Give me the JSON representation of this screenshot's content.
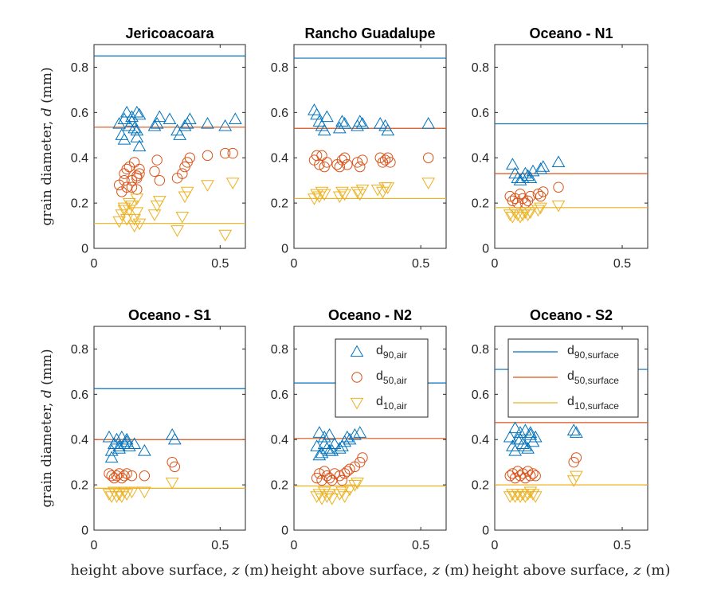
{
  "chart_data": [
    {
      "type": "scatter",
      "title": "Jericoacoara",
      "xlabel": "",
      "ylabel": "grain diameter, d (mm)",
      "xlim": [
        0,
        0.6
      ],
      "ylim": [
        0,
        0.9
      ],
      "xticks": [
        "0",
        "0.5"
      ],
      "yticks": [
        "0",
        "0.2",
        "0.4",
        "0.6",
        "0.8"
      ],
      "lines": {
        "d90_surface": 0.85,
        "d50_surface": 0.535,
        "d10_surface": 0.11
      },
      "series": [
        {
          "name": "d90,air",
          "x": [
            0.1,
            0.11,
            0.12,
            0.13,
            0.14,
            0.15,
            0.16,
            0.17,
            0.17,
            0.18,
            0.12,
            0.15,
            0.17,
            0.18,
            0.24,
            0.25,
            0.26,
            0.3,
            0.33,
            0.34,
            0.36,
            0.37,
            0.38,
            0.45,
            0.52,
            0.56
          ],
          "y": [
            0.55,
            0.5,
            0.57,
            0.6,
            0.54,
            0.58,
            0.53,
            0.6,
            0.49,
            0.45,
            0.48,
            0.56,
            0.52,
            0.59,
            0.54,
            0.55,
            0.58,
            0.57,
            0.52,
            0.5,
            0.54,
            0.55,
            0.57,
            0.55,
            0.54,
            0.57
          ]
        },
        {
          "name": "d50,air",
          "x": [
            0.1,
            0.11,
            0.12,
            0.13,
            0.13,
            0.14,
            0.15,
            0.16,
            0.17,
            0.17,
            0.18,
            0.12,
            0.15,
            0.17,
            0.18,
            0.24,
            0.25,
            0.26,
            0.33,
            0.35,
            0.36,
            0.37,
            0.38,
            0.45,
            0.52,
            0.55
          ],
          "y": [
            0.28,
            0.25,
            0.33,
            0.35,
            0.27,
            0.36,
            0.3,
            0.38,
            0.32,
            0.26,
            0.35,
            0.3,
            0.27,
            0.31,
            0.33,
            0.34,
            0.39,
            0.3,
            0.31,
            0.33,
            0.36,
            0.38,
            0.4,
            0.41,
            0.42,
            0.42
          ]
        },
        {
          "name": "d10,air",
          "x": [
            0.1,
            0.11,
            0.12,
            0.13,
            0.14,
            0.15,
            0.16,
            0.17,
            0.17,
            0.18,
            0.12,
            0.14,
            0.16,
            0.24,
            0.25,
            0.26,
            0.33,
            0.35,
            0.36,
            0.37,
            0.45,
            0.52,
            0.55
          ],
          "y": [
            0.12,
            0.15,
            0.18,
            0.13,
            0.17,
            0.19,
            0.1,
            0.16,
            0.22,
            0.11,
            0.17,
            0.2,
            0.13,
            0.15,
            0.19,
            0.21,
            0.08,
            0.14,
            0.23,
            0.25,
            0.28,
            0.06,
            0.29
          ]
        }
      ]
    },
    {
      "type": "scatter",
      "title": "Rancho Guadalupe",
      "xlabel": "",
      "ylabel": "",
      "xlim": [
        0,
        0.6
      ],
      "ylim": [
        0,
        0.9
      ],
      "xticks": [
        "0",
        "0.5"
      ],
      "yticks": [
        "0",
        "0.2",
        "0.4",
        "0.6",
        "0.8"
      ],
      "lines": {
        "d90_surface": 0.84,
        "d50_surface": 0.53,
        "d10_surface": 0.22
      },
      "series": [
        {
          "name": "d90,air",
          "x": [
            0.08,
            0.09,
            0.1,
            0.11,
            0.12,
            0.13,
            0.18,
            0.19,
            0.2,
            0.25,
            0.26,
            0.27,
            0.34,
            0.36,
            0.37,
            0.53
          ],
          "y": [
            0.61,
            0.59,
            0.56,
            0.54,
            0.52,
            0.58,
            0.53,
            0.56,
            0.55,
            0.54,
            0.56,
            0.55,
            0.55,
            0.54,
            0.52,
            0.55
          ]
        },
        {
          "name": "d50,air",
          "x": [
            0.08,
            0.09,
            0.1,
            0.11,
            0.12,
            0.13,
            0.17,
            0.18,
            0.19,
            0.2,
            0.21,
            0.25,
            0.26,
            0.27,
            0.34,
            0.35,
            0.36,
            0.37,
            0.38,
            0.53
          ],
          "y": [
            0.39,
            0.41,
            0.37,
            0.41,
            0.36,
            0.38,
            0.37,
            0.36,
            0.39,
            0.4,
            0.37,
            0.38,
            0.36,
            0.39,
            0.4,
            0.38,
            0.39,
            0.4,
            0.38,
            0.4
          ]
        },
        {
          "name": "d10,air",
          "x": [
            0.08,
            0.09,
            0.1,
            0.11,
            0.12,
            0.18,
            0.19,
            0.2,
            0.25,
            0.26,
            0.27,
            0.33,
            0.35,
            0.36,
            0.37,
            0.53
          ],
          "y": [
            0.22,
            0.24,
            0.23,
            0.25,
            0.24,
            0.23,
            0.25,
            0.24,
            0.25,
            0.24,
            0.26,
            0.26,
            0.25,
            0.27,
            0.27,
            0.29
          ]
        }
      ]
    },
    {
      "type": "scatter",
      "title": "Oceano - N1",
      "xlabel": "",
      "ylabel": "",
      "xlim": [
        0,
        0.6
      ],
      "ylim": [
        0,
        0.9
      ],
      "xticks": [
        "0",
        "0.5"
      ],
      "yticks": [
        "0",
        "0.2",
        "0.4",
        "0.6",
        "0.8"
      ],
      "lines": {
        "d90_surface": 0.55,
        "d50_surface": 0.33,
        "d10_surface": 0.18
      },
      "series": [
        {
          "name": "d90,air",
          "x": [
            0.07,
            0.08,
            0.09,
            0.1,
            0.11,
            0.12,
            0.13,
            0.14,
            0.15,
            0.18,
            0.19,
            0.25
          ],
          "y": [
            0.37,
            0.33,
            0.31,
            0.3,
            0.31,
            0.33,
            0.32,
            0.31,
            0.34,
            0.35,
            0.36,
            0.38
          ]
        },
        {
          "name": "d50,air",
          "x": [
            0.06,
            0.07,
            0.08,
            0.09,
            0.1,
            0.11,
            0.12,
            0.13,
            0.14,
            0.17,
            0.18,
            0.19,
            0.25
          ],
          "y": [
            0.23,
            0.21,
            0.22,
            0.2,
            0.24,
            0.22,
            0.2,
            0.21,
            0.23,
            0.24,
            0.23,
            0.25,
            0.27
          ]
        },
        {
          "name": "d10,air",
          "x": [
            0.06,
            0.07,
            0.08,
            0.09,
            0.1,
            0.11,
            0.12,
            0.13,
            0.14,
            0.17,
            0.18,
            0.25
          ],
          "y": [
            0.15,
            0.14,
            0.16,
            0.15,
            0.14,
            0.15,
            0.16,
            0.15,
            0.16,
            0.17,
            0.18,
            0.19
          ]
        }
      ]
    },
    {
      "type": "scatter",
      "title": "Oceano - S1",
      "xlabel": "height above surface, z (m)",
      "ylabel": "grain diameter, d (mm)",
      "xlim": [
        0,
        0.6
      ],
      "ylim": [
        0,
        0.9
      ],
      "xticks": [
        "0",
        "0.5"
      ],
      "yticks": [
        "0",
        "0.2",
        "0.4",
        "0.6",
        "0.8"
      ],
      "lines": {
        "d90_surface": 0.625,
        "d50_surface": 0.4,
        "d10_surface": 0.185
      },
      "series": [
        {
          "name": "d90,air",
          "x": [
            0.06,
            0.07,
            0.08,
            0.09,
            0.1,
            0.11,
            0.12,
            0.13,
            0.14,
            0.16,
            0.2,
            0.31,
            0.32,
            0.07,
            0.1,
            0.13
          ],
          "y": [
            0.41,
            0.35,
            0.38,
            0.4,
            0.37,
            0.41,
            0.38,
            0.4,
            0.37,
            0.38,
            0.35,
            0.42,
            0.4,
            0.32,
            0.36,
            0.39
          ]
        },
        {
          "name": "d50,air",
          "x": [
            0.06,
            0.07,
            0.08,
            0.09,
            0.1,
            0.11,
            0.12,
            0.13,
            0.15,
            0.2,
            0.31,
            0.32
          ],
          "y": [
            0.25,
            0.24,
            0.23,
            0.24,
            0.25,
            0.23,
            0.24,
            0.25,
            0.24,
            0.24,
            0.3,
            0.28
          ]
        },
        {
          "name": "d10,air",
          "x": [
            0.06,
            0.07,
            0.08,
            0.09,
            0.1,
            0.11,
            0.12,
            0.13,
            0.15,
            0.2,
            0.31
          ],
          "y": [
            0.16,
            0.15,
            0.17,
            0.15,
            0.16,
            0.15,
            0.17,
            0.16,
            0.17,
            0.17,
            0.21
          ]
        }
      ]
    },
    {
      "type": "scatter",
      "title": "Oceano - N2",
      "xlabel": "height above surface, z (m)",
      "ylabel": "",
      "xlim": [
        0,
        0.6
      ],
      "ylim": [
        0,
        0.9
      ],
      "xticks": [
        "0",
        "0.5"
      ],
      "yticks": [
        "0",
        "0.2",
        "0.4",
        "0.6",
        "0.8"
      ],
      "lines": {
        "d90_surface": 0.65,
        "d50_surface": 0.405,
        "d10_surface": 0.195
      },
      "series": [
        {
          "name": "d90,air",
          "x": [
            0.09,
            0.1,
            0.11,
            0.12,
            0.13,
            0.14,
            0.15,
            0.16,
            0.18,
            0.19,
            0.2,
            0.21,
            0.22,
            0.24,
            0.26,
            0.1,
            0.12,
            0.14
          ],
          "y": [
            0.37,
            0.43,
            0.34,
            0.41,
            0.36,
            0.42,
            0.35,
            0.38,
            0.36,
            0.37,
            0.39,
            0.41,
            0.4,
            0.42,
            0.43,
            0.33,
            0.38,
            0.35
          ]
        },
        {
          "name": "d50,air",
          "x": [
            0.09,
            0.1,
            0.11,
            0.12,
            0.13,
            0.14,
            0.15,
            0.16,
            0.18,
            0.19,
            0.2,
            0.21,
            0.22,
            0.24,
            0.26,
            0.27
          ],
          "y": [
            0.23,
            0.25,
            0.22,
            0.26,
            0.24,
            0.23,
            0.22,
            0.25,
            0.24,
            0.22,
            0.25,
            0.26,
            0.27,
            0.28,
            0.3,
            0.32
          ]
        },
        {
          "name": "d10,air",
          "x": [
            0.09,
            0.1,
            0.11,
            0.12,
            0.13,
            0.14,
            0.15,
            0.18,
            0.19,
            0.2,
            0.22,
            0.24,
            0.25
          ],
          "y": [
            0.15,
            0.16,
            0.14,
            0.17,
            0.15,
            0.16,
            0.14,
            0.16,
            0.17,
            0.15,
            0.18,
            0.2,
            0.21
          ]
        }
      ]
    },
    {
      "type": "scatter",
      "title": "Oceano - S2",
      "xlabel": "height above surface, z (m)",
      "ylabel": "",
      "xlim": [
        0,
        0.6
      ],
      "ylim": [
        0,
        0.9
      ],
      "xticks": [
        "0",
        "0.5"
      ],
      "yticks": [
        "0",
        "0.2",
        "0.4",
        "0.6",
        "0.8"
      ],
      "lines": {
        "d90_surface": 0.71,
        "d50_surface": 0.475,
        "d10_surface": 0.2
      },
      "series": [
        {
          "name": "d90,air",
          "x": [
            0.06,
            0.07,
            0.08,
            0.09,
            0.1,
            0.11,
            0.12,
            0.13,
            0.14,
            0.15,
            0.16,
            0.08,
            0.1,
            0.12,
            0.14,
            0.31,
            0.32
          ],
          "y": [
            0.41,
            0.37,
            0.45,
            0.4,
            0.43,
            0.38,
            0.44,
            0.36,
            0.42,
            0.39,
            0.41,
            0.35,
            0.4,
            0.37,
            0.43,
            0.44,
            0.43
          ]
        },
        {
          "name": "d50,air",
          "x": [
            0.06,
            0.07,
            0.08,
            0.09,
            0.1,
            0.11,
            0.12,
            0.13,
            0.14,
            0.15,
            0.16,
            0.31,
            0.32
          ],
          "y": [
            0.24,
            0.25,
            0.23,
            0.26,
            0.24,
            0.25,
            0.23,
            0.26,
            0.24,
            0.25,
            0.24,
            0.3,
            0.32
          ]
        },
        {
          "name": "d10,air",
          "x": [
            0.06,
            0.07,
            0.08,
            0.09,
            0.1,
            0.11,
            0.12,
            0.13,
            0.14,
            0.15,
            0.16,
            0.31,
            0.32
          ],
          "y": [
            0.15,
            0.16,
            0.15,
            0.16,
            0.15,
            0.16,
            0.15,
            0.16,
            0.17,
            0.16,
            0.15,
            0.22,
            0.24
          ]
        }
      ]
    }
  ],
  "legend_air": {
    "entries": [
      {
        "main": "d",
        "sub": "90,air"
      },
      {
        "main": "d",
        "sub": "50,air"
      },
      {
        "main": "d",
        "sub": "10,air"
      }
    ]
  },
  "legend_surface": {
    "entries": [
      {
        "main": "d",
        "sub": "90,surface"
      },
      {
        "main": "d",
        "sub": "50,surface"
      },
      {
        "main": "d",
        "sub": "10,surface"
      }
    ]
  },
  "colors": {
    "d90": "#0072BD",
    "d50": "#D95319",
    "d10": "#EDB120"
  }
}
